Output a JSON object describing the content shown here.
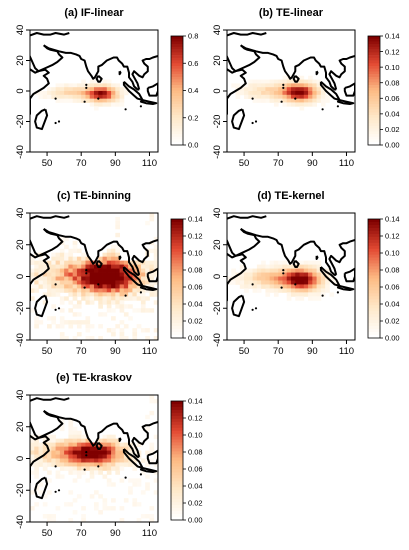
{
  "chart_data": [
    {
      "type": "heatmap",
      "title": "(a) IF-linear",
      "x_ticks": [
        50,
        70,
        90,
        110
      ],
      "y_ticks": [
        40,
        20,
        0,
        -20,
        -40
      ],
      "colorbar": {
        "range": [
          0.0,
          0.8
        ],
        "ticks": [
          "0.8",
          "0.6",
          "0.4",
          "0.2",
          "0.0"
        ]
      },
      "peak": {
        "lon": 82,
        "lat": -2
      },
      "spread": "medium"
    },
    {
      "type": "heatmap",
      "title": "(b) TE-linear",
      "x_ticks": [
        50,
        70,
        90,
        110
      ],
      "y_ticks": [
        40,
        20,
        0,
        -20,
        -40
      ],
      "colorbar": {
        "range": [
          0.0,
          0.14
        ],
        "ticks": [
          "0.14",
          "0.12",
          "0.10",
          "0.08",
          "0.06",
          "0.04",
          "0.02",
          "0.00"
        ]
      },
      "peak": {
        "lon": 83,
        "lat": -1
      },
      "spread": "medium"
    },
    {
      "type": "heatmap",
      "title": "(c) TE-binning",
      "x_ticks": [
        50,
        70,
        90,
        110
      ],
      "y_ticks": [
        40,
        20,
        0,
        -20,
        -40
      ],
      "colorbar": {
        "range": [
          0.0,
          0.14
        ],
        "ticks": [
          "0.14",
          "0.12",
          "0.10",
          "0.08",
          "0.06",
          "0.04",
          "0.02",
          "0.00"
        ]
      },
      "peak": {
        "lon": 88,
        "lat": 0
      },
      "spread": "wide"
    },
    {
      "type": "heatmap",
      "title": "(d) TE-kernel",
      "x_ticks": [
        50,
        70,
        90,
        110
      ],
      "y_ticks": [
        40,
        20,
        0,
        -20,
        -40
      ],
      "colorbar": {
        "range": [
          0.0,
          0.14
        ],
        "ticks": [
          "0.14",
          "0.12",
          "0.10",
          "0.08",
          "0.06",
          "0.04",
          "0.02",
          "0.00"
        ]
      },
      "peak": {
        "lon": 84,
        "lat": -2
      },
      "spread": "medium"
    },
    {
      "type": "heatmap",
      "title": "(e) TE-kraskov",
      "x_ticks": [
        50,
        70,
        90,
        110
      ],
      "y_ticks": [
        40,
        20,
        0,
        -20,
        -40
      ],
      "colorbar": {
        "range": [
          0.0,
          0.14
        ],
        "ticks": [
          "0.14",
          "0.12",
          "0.10",
          "0.08",
          "0.06",
          "0.04",
          "0.02",
          "0.00"
        ]
      },
      "peak": {
        "lon": 78,
        "lat": 3
      },
      "spread": "wide"
    }
  ],
  "colors": {
    "high": "#7f0000",
    "mid": "#e34a33",
    "low": "#fdd49e",
    "zero": "#ffffff",
    "coast": "#000000"
  }
}
